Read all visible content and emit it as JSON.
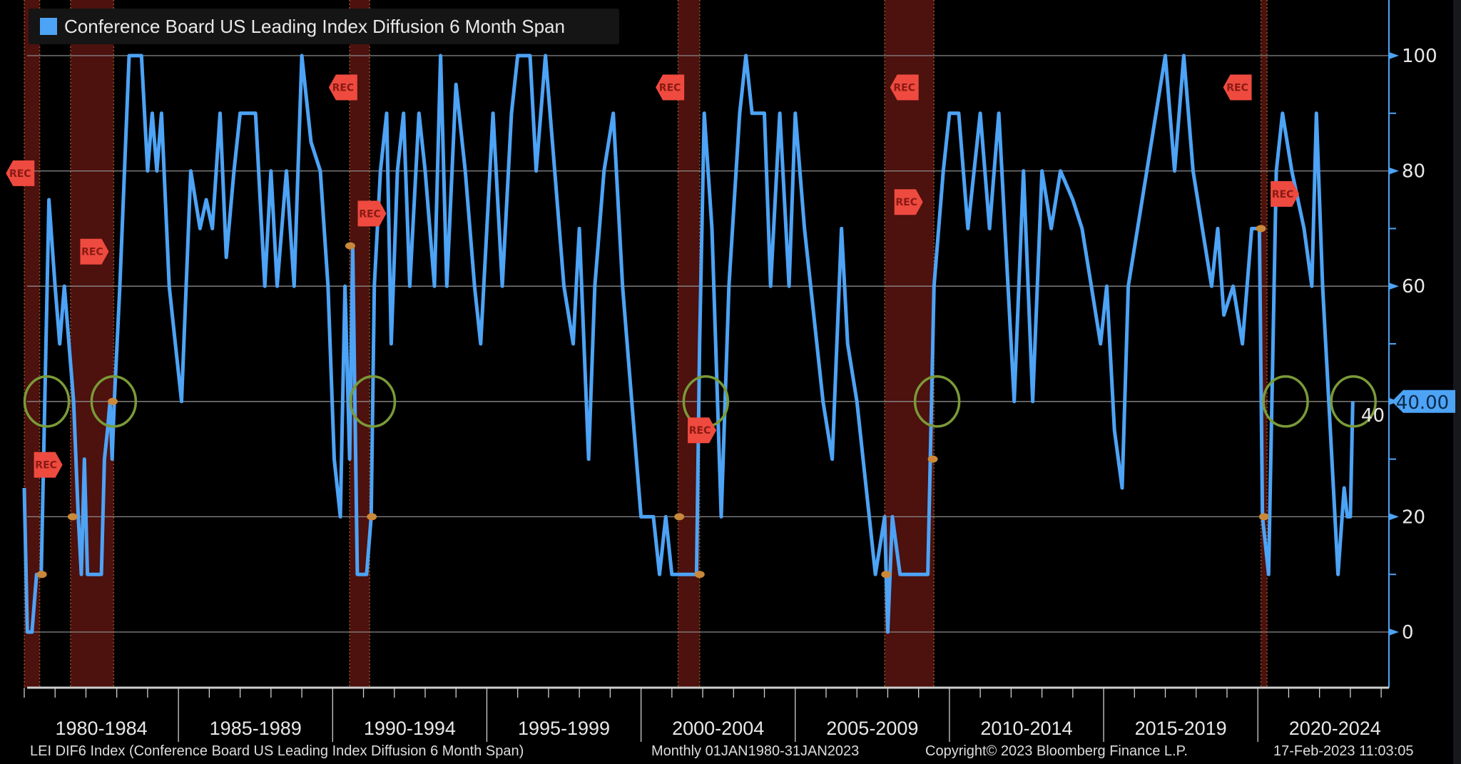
{
  "chart_data": {
    "type": "line",
    "title": "Conference Board US Leading Index Diffusion 6 Month Span",
    "legend": [
      "Conference Board US Leading Index Diffusion 6 Month Span"
    ],
    "legend_placement": "top-left",
    "ylim": [
      -9.5,
      105
    ],
    "xlim": [
      1980,
      2024.4
    ],
    "yticks": [
      0,
      20,
      40,
      60,
      80,
      100
    ],
    "ytick_labels": [
      "0",
      "20",
      "40",
      "60",
      "80",
      "100"
    ],
    "x_period_labels": [
      "1980-1984",
      "1985-1989",
      "1990-1994",
      "1995-1999",
      "2000-2004",
      "2005-2009",
      "2010-2014",
      "2015-2019",
      "2020-2024"
    ],
    "last_value_label": "40.00",
    "grid": true,
    "series": [
      {
        "name": "LEI DIF6 Index",
        "color": "#4da3f5",
        "points": [
          [
            1980.0,
            25
          ],
          [
            1980.1,
            0
          ],
          [
            1980.25,
            0
          ],
          [
            1980.4,
            10
          ],
          [
            1980.55,
            10
          ],
          [
            1980.8,
            75
          ],
          [
            1981.0,
            60
          ],
          [
            1981.15,
            50
          ],
          [
            1981.3,
            60
          ],
          [
            1981.6,
            40
          ],
          [
            1981.75,
            20
          ],
          [
            1981.85,
            10
          ],
          [
            1981.95,
            30
          ],
          [
            1982.05,
            10
          ],
          [
            1982.5,
            10
          ],
          [
            1982.6,
            30
          ],
          [
            1982.7,
            35
          ],
          [
            1982.78,
            40
          ],
          [
            1982.85,
            30
          ],
          [
            1982.92,
            40
          ],
          [
            1983.1,
            60
          ],
          [
            1983.25,
            80
          ],
          [
            1983.4,
            100
          ],
          [
            1983.8,
            100
          ],
          [
            1984.0,
            80
          ],
          [
            1984.15,
            90
          ],
          [
            1984.3,
            80
          ],
          [
            1984.45,
            90
          ],
          [
            1984.7,
            60
          ],
          [
            1984.9,
            50
          ],
          [
            1985.1,
            40
          ],
          [
            1985.4,
            80
          ],
          [
            1985.7,
            70
          ],
          [
            1985.9,
            75
          ],
          [
            1986.1,
            70
          ],
          [
            1986.35,
            90
          ],
          [
            1986.55,
            65
          ],
          [
            1986.8,
            80
          ],
          [
            1987.0,
            90
          ],
          [
            1987.5,
            90
          ],
          [
            1987.8,
            60
          ],
          [
            1988.0,
            80
          ],
          [
            1988.2,
            60
          ],
          [
            1988.5,
            80
          ],
          [
            1988.75,
            60
          ],
          [
            1989.0,
            100
          ],
          [
            1989.3,
            85
          ],
          [
            1989.6,
            80
          ],
          [
            1989.85,
            60
          ],
          [
            1990.05,
            30
          ],
          [
            1990.25,
            20
          ],
          [
            1990.4,
            60
          ],
          [
            1990.55,
            30
          ],
          [
            1990.65,
            67
          ],
          [
            1990.8,
            10
          ],
          [
            1991.1,
            10
          ],
          [
            1991.25,
            20
          ],
          [
            1991.35,
            60
          ],
          [
            1991.55,
            80
          ],
          [
            1991.75,
            90
          ],
          [
            1991.9,
            50
          ],
          [
            1992.1,
            80
          ],
          [
            1992.3,
            90
          ],
          [
            1992.5,
            60
          ],
          [
            1992.8,
            90
          ],
          [
            1993.0,
            80
          ],
          [
            1993.3,
            60
          ],
          [
            1993.5,
            100
          ],
          [
            1993.7,
            60
          ],
          [
            1994.0,
            95
          ],
          [
            1994.3,
            80
          ],
          [
            1994.6,
            60
          ],
          [
            1994.8,
            50
          ],
          [
            1995.2,
            90
          ],
          [
            1995.5,
            60
          ],
          [
            1995.8,
            90
          ],
          [
            1996.0,
            100
          ],
          [
            1996.4,
            100
          ],
          [
            1996.6,
            80
          ],
          [
            1996.9,
            100
          ],
          [
            1997.2,
            80
          ],
          [
            1997.5,
            60
          ],
          [
            1997.8,
            50
          ],
          [
            1998.0,
            70
          ],
          [
            1998.3,
            30
          ],
          [
            1998.5,
            60
          ],
          [
            1998.8,
            80
          ],
          [
            1999.1,
            90
          ],
          [
            1999.4,
            60
          ],
          [
            1999.7,
            40
          ],
          [
            2000.0,
            20
          ],
          [
            2000.4,
            20
          ],
          [
            2000.6,
            10
          ],
          [
            2000.8,
            20
          ],
          [
            2001.0,
            10
          ],
          [
            2001.8,
            10
          ],
          [
            2001.9,
            50
          ],
          [
            2002.05,
            90
          ],
          [
            2002.3,
            70
          ],
          [
            2002.6,
            20
          ],
          [
            2002.85,
            60
          ],
          [
            2003.2,
            90
          ],
          [
            2003.4,
            100
          ],
          [
            2003.6,
            90
          ],
          [
            2004.0,
            90
          ],
          [
            2004.2,
            60
          ],
          [
            2004.5,
            90
          ],
          [
            2004.8,
            60
          ],
          [
            2005.0,
            90
          ],
          [
            2005.3,
            70
          ],
          [
            2005.5,
            60
          ],
          [
            2005.9,
            40
          ],
          [
            2006.2,
            30
          ],
          [
            2006.5,
            70
          ],
          [
            2006.7,
            50
          ],
          [
            2007.0,
            40
          ],
          [
            2007.4,
            20
          ],
          [
            2007.6,
            10
          ],
          [
            2007.9,
            20
          ],
          [
            2008.0,
            0
          ],
          [
            2008.15,
            20
          ],
          [
            2008.4,
            10
          ],
          [
            2009.3,
            10
          ],
          [
            2009.5,
            60
          ],
          [
            2009.8,
            80
          ],
          [
            2010.0,
            90
          ],
          [
            2010.3,
            90
          ],
          [
            2010.6,
            70
          ],
          [
            2011.0,
            90
          ],
          [
            2011.3,
            70
          ],
          [
            2011.6,
            90
          ],
          [
            2011.9,
            60
          ],
          [
            2012.1,
            40
          ],
          [
            2012.4,
            80
          ],
          [
            2012.7,
            40
          ],
          [
            2013.0,
            80
          ],
          [
            2013.3,
            70
          ],
          [
            2013.6,
            80
          ],
          [
            2014.0,
            75
          ],
          [
            2014.3,
            70
          ],
          [
            2014.6,
            60
          ],
          [
            2014.9,
            50
          ],
          [
            2015.1,
            60
          ],
          [
            2015.35,
            35
          ],
          [
            2015.6,
            25
          ],
          [
            2015.8,
            60
          ],
          [
            2016.1,
            70
          ],
          [
            2016.4,
            80
          ],
          [
            2016.7,
            90
          ],
          [
            2017.0,
            100
          ],
          [
            2017.3,
            80
          ],
          [
            2017.6,
            100
          ],
          [
            2017.9,
            80
          ],
          [
            2018.2,
            70
          ],
          [
            2018.5,
            60
          ],
          [
            2018.7,
            70
          ],
          [
            2018.9,
            55
          ],
          [
            2019.2,
            60
          ],
          [
            2019.5,
            50
          ],
          [
            2019.8,
            70
          ],
          [
            2020.05,
            70
          ],
          [
            2020.15,
            20
          ],
          [
            2020.35,
            10
          ],
          [
            2020.6,
            80
          ],
          [
            2020.8,
            90
          ],
          [
            2021.1,
            80
          ],
          [
            2021.5,
            70
          ],
          [
            2021.75,
            60
          ],
          [
            2021.9,
            90
          ],
          [
            2022.1,
            60
          ],
          [
            2022.4,
            30
          ],
          [
            2022.6,
            10
          ],
          [
            2022.8,
            25
          ],
          [
            2022.9,
            20
          ],
          [
            2023.0,
            20
          ],
          [
            2023.08,
            40
          ]
        ]
      }
    ],
    "recessions": [
      [
        1980.0,
        1980.5
      ],
      [
        1981.5,
        1982.9
      ],
      [
        1990.55,
        1991.2
      ],
      [
        2001.2,
        2001.9
      ],
      [
        2007.9,
        2009.5
      ],
      [
        2020.1,
        2020.3
      ]
    ],
    "rec_flags": [
      {
        "label": "REC",
        "x": 1980.33,
        "y": 79.6,
        "dir": "left"
      },
      {
        "label": "REC",
        "x": 1980.5,
        "y": 29,
        "dir": "right"
      },
      {
        "label": "REC",
        "x": 1982.0,
        "y": 66,
        "dir": "right"
      },
      {
        "label": "REC",
        "x": 1990.8,
        "y": 94.5,
        "dir": "left"
      },
      {
        "label": "REC",
        "x": 1991.0,
        "y": 72.6,
        "dir": "right"
      },
      {
        "label": "REC",
        "x": 2001.4,
        "y": 94.5,
        "dir": "left"
      },
      {
        "label": "REC",
        "x": 2001.7,
        "y": 35,
        "dir": "right"
      },
      {
        "label": "REC",
        "x": 2009.0,
        "y": 94.5,
        "dir": "left"
      },
      {
        "label": "REC",
        "x": 2008.4,
        "y": 74.6,
        "dir": "right"
      },
      {
        "label": "REC",
        "x": 2019.8,
        "y": 94.5,
        "dir": "left"
      },
      {
        "label": "REC",
        "x": 2020.6,
        "y": 76,
        "dir": "right"
      }
    ],
    "event_markers": [
      [
        1980.57,
        10
      ],
      [
        1981.57,
        20
      ],
      [
        1982.87,
        40
      ],
      [
        1990.57,
        67
      ],
      [
        1991.27,
        20
      ],
      [
        2001.24,
        20
      ],
      [
        2001.9,
        10
      ],
      [
        2007.95,
        10
      ],
      [
        2009.46,
        30
      ],
      [
        2020.1,
        70
      ],
      [
        2020.2,
        20
      ]
    ],
    "highlight_circles": [
      [
        1980.73,
        40
      ],
      [
        1982.9,
        40
      ],
      [
        1991.3,
        40
      ],
      [
        2002.1,
        40
      ],
      [
        2009.6,
        40
      ],
      [
        2020.9,
        40
      ],
      [
        2023.1,
        40
      ]
    ]
  },
  "footer": {
    "description": "LEI DIF6 Index (Conference Board US Leading Index Diffusion 6 Month Span)",
    "range": "Monthly 01JAN1980-31JAN2023",
    "copyright": "Copyright© 2023 Bloomberg Finance L.P.",
    "timestamp": "17-Feb-2023 11:03:05"
  }
}
